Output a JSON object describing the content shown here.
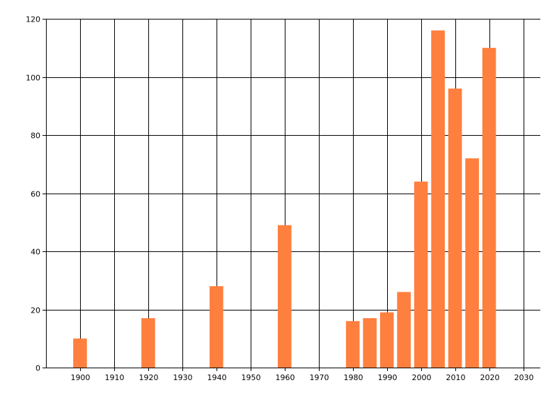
{
  "chart_data": {
    "type": "bar",
    "title": "",
    "xlabel": "",
    "ylabel": "",
    "xlim": [
      1890,
      2035
    ],
    "ylim": [
      0,
      120
    ],
    "grid": true,
    "x_ticks": [
      1900,
      1910,
      1920,
      1930,
      1940,
      1950,
      1960,
      1970,
      1980,
      1990,
      2000,
      2010,
      2020,
      2030
    ],
    "x_tick_labels": [
      "1900",
      "1910",
      "1920",
      "1930",
      "1940",
      "1950",
      "1960",
      "1970",
      "1980",
      "1990",
      "2000",
      "2010",
      "2020",
      "2030"
    ],
    "y_ticks": [
      0,
      20,
      40,
      60,
      80,
      100,
      120
    ],
    "y_tick_labels": [
      "0",
      "20",
      "40",
      "60",
      "80",
      "100",
      "120"
    ],
    "bar_width_years": 4,
    "bar_color": "#FF7F3F",
    "x": [
      1900,
      1920,
      1940,
      1960,
      1980,
      1985,
      1990,
      1995,
      2000,
      2005,
      2010,
      2015,
      2020
    ],
    "values": [
      10,
      17,
      28,
      49,
      16,
      17,
      19,
      26,
      64,
      116,
      96,
      72,
      110
    ]
  }
}
